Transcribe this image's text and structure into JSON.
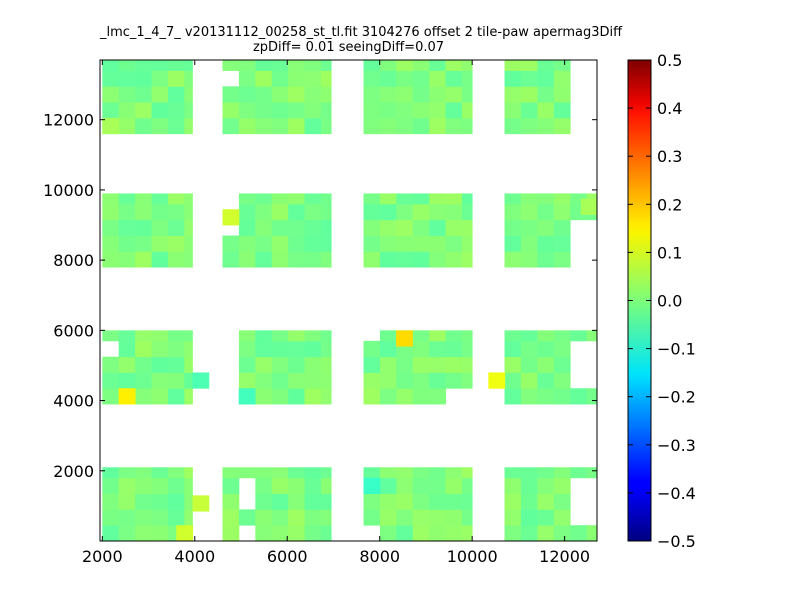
{
  "title_lines": [
    "_lmc_1_4_7_ v20131112_00258_st_tl.fit 3104276 offset 2 tile-paw apermag3Diff",
    "zpDiff= 0.01 seeingDiff=0.07"
  ],
  "chart_data": {
    "type": "heatmap",
    "colormap": "jet",
    "xlim": [
      1950,
      12700
    ],
    "ylim": [
      0,
      13700
    ],
    "xticks": [
      2000,
      4000,
      6000,
      8000,
      10000,
      12000
    ],
    "yticks": [
      2000,
      4000,
      6000,
      8000,
      10000,
      12000
    ],
    "colorbar": {
      "vmin": -0.5,
      "vmax": 0.5,
      "ticks": [
        "0.5",
        "0.4",
        "0.3",
        "0.2",
        "0.1",
        "0.0",
        "−0.1",
        "−0.2",
        "−0.3",
        "−0.4",
        "−0.5"
      ]
    },
    "cell_size": [
      355,
      450
    ],
    "typical_value": 0.0,
    "column_groups": [
      {
        "x_start": 2000,
        "x_end": 3950
      },
      {
        "x_start": 4600,
        "x_end": 6950
      },
      {
        "x_start": 7650,
        "x_end": 10000
      },
      {
        "x_start": 10700,
        "x_end": 12700
      }
    ],
    "row_groups": [
      {
        "y_start": 0,
        "y_end": 2100
      },
      {
        "y_start": 3900,
        "y_end": 6000
      },
      {
        "y_start": 7800,
        "y_end": 9900
      },
      {
        "y_start": 11600,
        "y_end": 13700
      }
    ],
    "missing_regions": [
      {
        "x": [
          3950,
          4600
        ],
        "y": [
          11600,
          13700
        ]
      },
      {
        "x": [
          4600,
          4950
        ],
        "y": [
          12900,
          13300
        ]
      },
      {
        "x": [
          3950,
          4600
        ],
        "y": [
          7800,
          9900
        ]
      },
      {
        "x": [
          4600,
          4950
        ],
        "y": [
          9300,
          9900
        ]
      },
      {
        "x": [
          4600,
          4950
        ],
        "y": [
          8500,
          9000
        ]
      },
      {
        "x": [
          3950,
          4350
        ],
        "y": [
          200,
          1100
        ]
      },
      {
        "x": [
          4350,
          4950
        ],
        "y": [
          3900,
          6000
        ]
      },
      {
        "x": [
          4950,
          5300
        ],
        "y": [
          1100,
          1600
        ]
      },
      {
        "x": [
          4950,
          5300
        ],
        "y": [
          0,
          400
        ]
      },
      {
        "x": [
          7650,
          8000
        ],
        "y": [
          0,
          350
        ]
      },
      {
        "x": [
          7650,
          8000
        ],
        "y": [
          5700,
          6000
        ]
      },
      {
        "x": [
          10000,
          10350
        ],
        "y": [
          0,
          2100
        ]
      },
      {
        "x": [
          10350,
          10700
        ],
        "y": [
          0,
          1100
        ]
      },
      {
        "x": [
          10350,
          10700
        ],
        "y": [
          1800,
          2100
        ]
      },
      {
        "x": [
          9600,
          10000
        ],
        "y": [
          3900,
          4350
        ]
      },
      {
        "x": [
          12000,
          12700
        ],
        "y": [
          11600,
          13700
        ]
      },
      {
        "x": [
          12000,
          12700
        ],
        "y": [
          8000,
          9300
        ]
      },
      {
        "x": [
          12000,
          12700
        ],
        "y": [
          4450,
          5700
        ]
      },
      {
        "x": [
          12000,
          12700
        ],
        "y": [
          350,
          1600
        ]
      },
      {
        "x": [
          2000,
          2300
        ],
        "y": [
          5100,
          5600
        ]
      }
    ],
    "highlight_cells": [
      {
        "x": 2355,
        "y": 3900,
        "value": 0.14
      },
      {
        "x": 8355,
        "y": 5550,
        "value": 0.16
      },
      {
        "x": 10350,
        "y": 4350,
        "value": 0.11
      },
      {
        "x": 4600,
        "y": 9000,
        "value": 0.08
      },
      {
        "x": 3600,
        "y": 0,
        "value": 0.08
      },
      {
        "x": 3950,
        "y": 850,
        "value": 0.07
      },
      {
        "x": 7650,
        "y": 1350,
        "value": -0.07
      },
      {
        "x": 4950,
        "y": 3900,
        "value": -0.06
      },
      {
        "x": 3950,
        "y": 4350,
        "value": -0.05
      },
      {
        "x": 12350,
        "y": 9300,
        "value": 0.04
      },
      {
        "x": 2000,
        "y": 11600,
        "value": 0.04
      }
    ]
  }
}
